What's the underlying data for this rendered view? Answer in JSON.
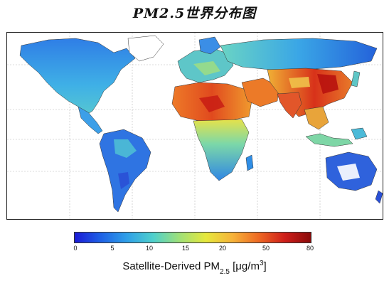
{
  "title": "PM2.5世界分布图",
  "colorbar": {
    "ticks": [
      "0",
      "5",
      "10",
      "15",
      "20",
      "50",
      "80"
    ],
    "label_main": "Satellite-Derived PM",
    "label_sub": "2.5",
    "label_unit_open": " [μg/m",
    "label_unit_sup": "3",
    "label_unit_close": "]",
    "colors": [
      "#1b1bd6",
      "#1f62e6",
      "#2fa0e8",
      "#4fd0cc",
      "#9fe078",
      "#e6e83c",
      "#f6b43a",
      "#ee6a24",
      "#cf1e1a",
      "#8a0a0a"
    ]
  },
  "map": {
    "legend_scale": "log-like",
    "colors": {
      "ocean": "#ffffff",
      "low": "#1f4fd8",
      "mid_low": "#2fa8ea",
      "mid": "#68d8c0",
      "mid_high": "#e8e04a",
      "high": "#f08a2a",
      "very_high": "#d32418",
      "no_data": "#ffffff"
    }
  }
}
